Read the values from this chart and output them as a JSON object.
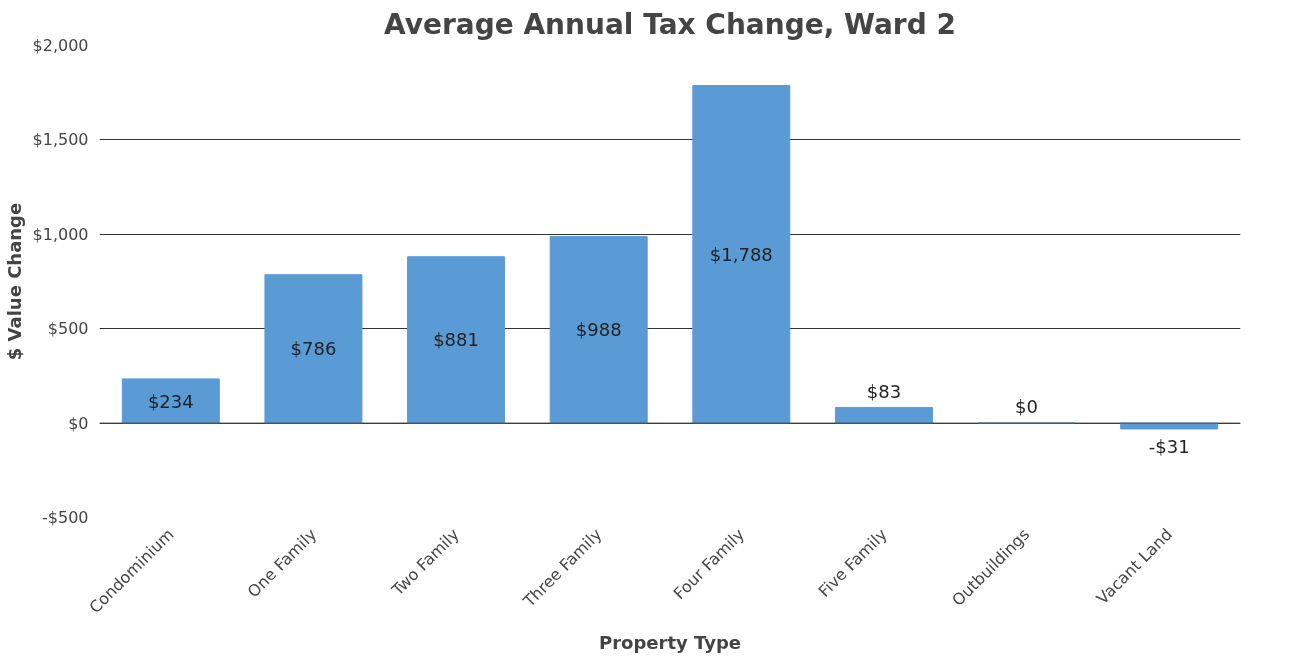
{
  "chart_data": {
    "type": "bar",
    "title": "Average Annual Tax Change, Ward 2",
    "xlabel": "Property Type",
    "ylabel": "$ Value Change",
    "categories": [
      "Condominium",
      "One Family",
      "Two Family",
      "Three Family",
      "Four Family",
      "Five Family",
      "Outbuildings",
      "Vacant Land"
    ],
    "values": [
      234,
      786,
      881,
      988,
      1788,
      83,
      0,
      -31
    ],
    "value_labels": [
      "$234",
      "$786",
      "$881",
      "$988",
      "$1,788",
      "$83",
      "$0",
      "-$31"
    ],
    "color": "#5b9bd5",
    "ylim": [
      -500,
      2000
    ],
    "yticks": [
      {
        "value": -500,
        "label": "-$500"
      },
      {
        "value": 0,
        "label": "$0"
      },
      {
        "value": 500,
        "label": "$500"
      },
      {
        "value": 1000,
        "label": "$1,000"
      },
      {
        "value": 1500,
        "label": "$1,500"
      },
      {
        "value": 2000,
        "label": "$2,000"
      }
    ],
    "grid": "y"
  }
}
